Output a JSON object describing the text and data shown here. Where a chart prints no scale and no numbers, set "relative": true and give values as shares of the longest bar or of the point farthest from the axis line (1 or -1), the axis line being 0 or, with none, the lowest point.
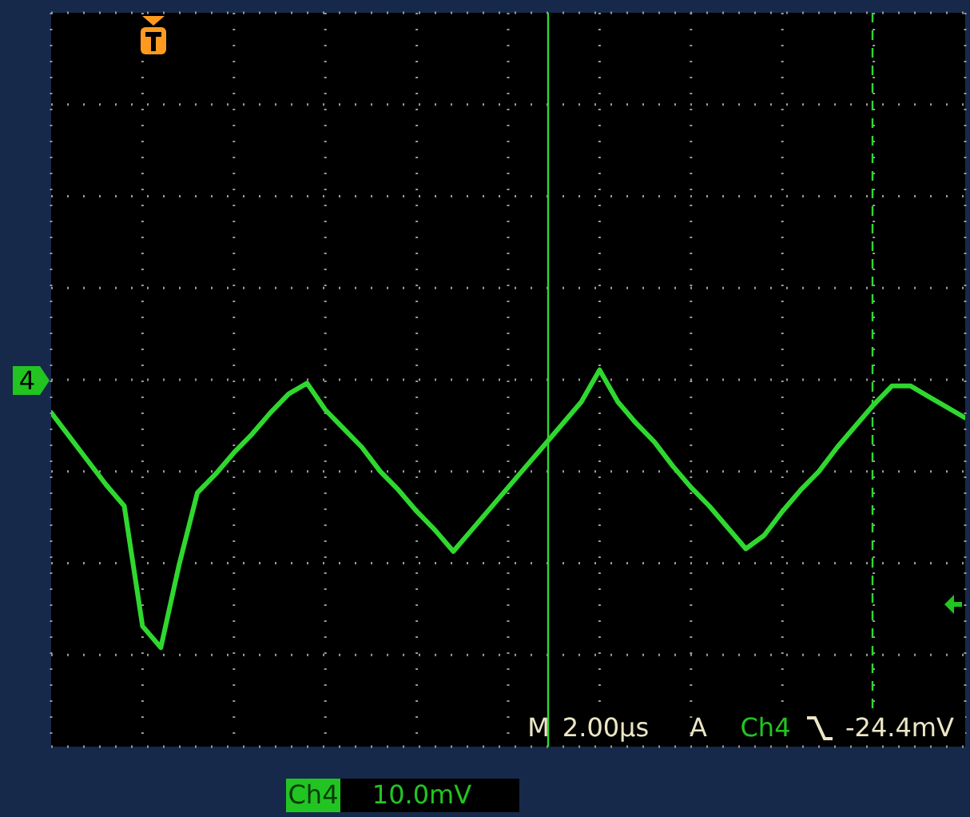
{
  "chart_data": {
    "type": "line",
    "relative": true,
    "grid": true,
    "marker": "none",
    "line_style": "solid",
    "categories": [
      null,
      null,
      null,
      null,
      null,
      null,
      null,
      null,
      null,
      null,
      null,
      null,
      null,
      null,
      null,
      null,
      null,
      null,
      null,
      null,
      null,
      null,
      null,
      null,
      null,
      null,
      null,
      null,
      null,
      null,
      null,
      null,
      null,
      null,
      null,
      null,
      null,
      null,
      null,
      null,
      null,
      null,
      null,
      null,
      null,
      null,
      null,
      null,
      null,
      null,
      null
    ],
    "series": [
      {
        "color": "#2fd82f",
        "values": [
          -0.12,
          -0.21,
          -0.3,
          -0.39,
          -0.47,
          -0.92,
          -1.0,
          -0.69,
          -0.42,
          -0.35,
          -0.27,
          -0.2,
          -0.12,
          -0.05,
          -0.01,
          -0.11,
          -0.18,
          -0.25,
          -0.34,
          -0.41,
          -0.49,
          -0.56,
          -0.64,
          -0.56,
          -0.48,
          -0.4,
          -0.32,
          -0.24,
          -0.16,
          -0.08,
          0.04,
          -0.08,
          -0.16,
          -0.23,
          -0.32,
          -0.4,
          -0.47,
          -0.55,
          -0.63,
          -0.58,
          -0.49,
          -0.41,
          -0.34,
          -0.25,
          -0.17,
          -0.09,
          -0.02,
          -0.02,
          -0.06,
          -0.1,
          -0.14
        ]
      }
    ],
    "annotations": [
      "4",
      "M",
      "2.00µs",
      "A",
      "Ch4",
      "-24.4mV",
      "Ch4",
      "10.0mV"
    ]
  }
}
